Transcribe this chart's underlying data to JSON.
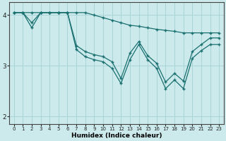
{
  "xlabel": "Humidex (Indice chaleur)",
  "bg_color": "#cceaec",
  "grid_color": "#a8d5d8",
  "line_color": "#1a7070",
  "xlim": [
    -0.5,
    23.5
  ],
  "ylim": [
    1.85,
    4.25
  ],
  "yticks": [
    2,
    3,
    4
  ],
  "xticks": [
    0,
    1,
    2,
    3,
    4,
    5,
    6,
    7,
    8,
    9,
    10,
    11,
    12,
    13,
    14,
    15,
    16,
    17,
    18,
    19,
    20,
    21,
    22,
    23
  ],
  "line1_x": [
    0,
    1,
    2,
    3,
    4,
    5,
    6,
    7,
    8,
    9,
    10,
    11,
    12,
    13,
    14,
    15,
    16,
    17,
    18,
    19,
    20,
    21,
    22,
    23
  ],
  "line1_y": [
    4.05,
    4.05,
    4.05,
    4.05,
    4.05,
    4.05,
    4.05,
    4.05,
    4.05,
    4.0,
    3.95,
    3.9,
    3.85,
    3.8,
    3.78,
    3.75,
    3.72,
    3.7,
    3.68,
    3.65,
    3.65,
    3.65,
    3.65,
    3.65
  ],
  "line2_x": [
    0,
    1,
    2,
    3,
    4,
    5,
    6,
    7,
    8,
    9,
    10,
    11,
    12,
    13,
    14,
    15,
    16,
    17,
    18,
    19,
    20,
    21,
    22,
    23
  ],
  "line2_y": [
    4.05,
    4.05,
    3.85,
    4.05,
    4.05,
    4.05,
    4.05,
    3.4,
    3.28,
    3.22,
    3.18,
    3.08,
    2.75,
    3.25,
    3.48,
    3.2,
    3.05,
    2.68,
    2.85,
    2.7,
    3.28,
    3.42,
    3.55,
    3.55
  ],
  "line3_x": [
    0,
    1,
    2,
    3,
    4,
    5,
    6,
    7,
    8,
    9,
    10,
    11,
    12,
    13,
    14,
    15,
    16,
    17,
    18,
    19,
    20,
    21,
    22,
    23
  ],
  "line3_y": [
    4.05,
    4.05,
    3.75,
    4.05,
    4.05,
    4.05,
    4.05,
    3.32,
    3.18,
    3.12,
    3.08,
    2.95,
    2.65,
    3.12,
    3.42,
    3.12,
    2.95,
    2.55,
    2.72,
    2.55,
    3.15,
    3.3,
    3.42,
    3.42
  ]
}
